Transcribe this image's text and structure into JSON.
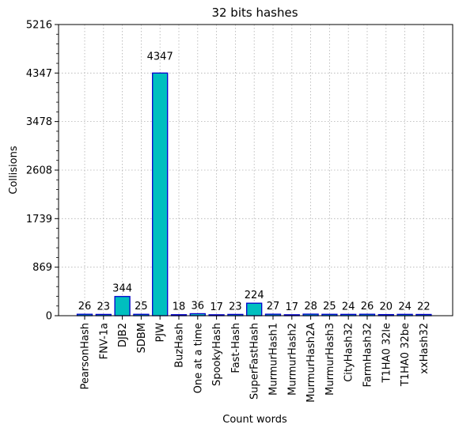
{
  "chart_data": {
    "type": "bar",
    "title": "32 bits hashes",
    "xlabel": "Count words",
    "ylabel": "Collisions",
    "ylim": [
      0,
      5216
    ],
    "yticks": [
      0,
      869,
      1739,
      2608,
      3478,
      4347,
      5216
    ],
    "grid": true,
    "categories": [
      "PearsonHash",
      "FNV-1a",
      "DJB2",
      "SDBM",
      "PJW",
      "BuzHash",
      "One at a time",
      "SpookyHash",
      "Fast-Hash",
      "SuperFastHash",
      "MurmurHash1",
      "MurmurHash2",
      "MurmurHash2A",
      "MurmurHash3",
      "CityHash32",
      "FarmHash32",
      "T1HA0 32le",
      "T1HA0 32be",
      "xxHash32"
    ],
    "values": [
      26,
      23,
      344,
      25,
      4347,
      18,
      36,
      17,
      23,
      224,
      27,
      17,
      28,
      25,
      24,
      26,
      20,
      24,
      22
    ],
    "bar_fill": "#00bfbf",
    "bar_edge": "#0000cc"
  }
}
